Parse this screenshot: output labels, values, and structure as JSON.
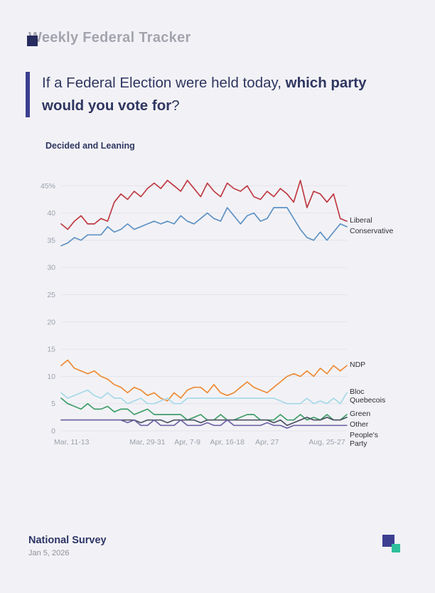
{
  "colors": {
    "background": "#f2f2f6",
    "accent": "#3c3f90",
    "heading_gray": "#a4a4af",
    "dark_text": "#2f3660",
    "tick_gray": "#9ba0ab",
    "grid": "#e3e3ea",
    "brand_teal": "#2fbf9b",
    "brand_navy": "#272b5e"
  },
  "header": {
    "title": "Weekly Federal Tracker",
    "question_normal": "If a Federal Election were held today, ",
    "question_bold": "which party would you vote for",
    "question_suffix": "?"
  },
  "chart_heading": "Decided and Leaning",
  "footer": {
    "title": "National Survey",
    "date": "Jan 5, 2026"
  },
  "chart_data": {
    "type": "line",
    "title": "Decided and Leaning",
    "xlabel": "",
    "ylabel": "",
    "ylim": [
      0,
      47
    ],
    "grid": true,
    "legend_position": "right-edge-labels",
    "n_points": 44,
    "y_ticks": [
      {
        "value": 45,
        "label": "45%"
      },
      {
        "value": 40,
        "label": "40"
      },
      {
        "value": 35,
        "label": "35"
      },
      {
        "value": 30,
        "label": "30"
      },
      {
        "value": 25,
        "label": "25"
      },
      {
        "value": 20,
        "label": "20"
      },
      {
        "value": 15,
        "label": "15"
      },
      {
        "value": 10,
        "label": "10"
      },
      {
        "value": 5,
        "label": "5"
      },
      {
        "value": 0,
        "label": "0"
      }
    ],
    "x_ticks": [
      {
        "index": 0,
        "label": "Mar, 11-13"
      },
      {
        "index": 13,
        "label": "Mar, 29-31"
      },
      {
        "index": 19,
        "label": "Apr, 7-9"
      },
      {
        "index": 25,
        "label": "Apr, 16-18"
      },
      {
        "index": 31,
        "label": "Apr, 27"
      },
      {
        "index": 40,
        "label": "Aug, 25-27"
      }
    ],
    "series": [
      {
        "name": "Liberal",
        "color": "#bf3a42",
        "values": [
          38,
          37,
          38.5,
          39.5,
          38,
          38,
          39,
          38.5,
          42,
          43.5,
          42.5,
          44,
          43,
          44.5,
          45.5,
          44.5,
          46,
          45,
          44,
          46,
          44.5,
          43,
          45.5,
          44,
          43,
          45.5,
          44.5,
          44,
          45,
          43,
          42.5,
          44,
          43,
          44.5,
          43.5,
          42,
          46,
          41,
          44,
          43.5,
          42,
          43.5,
          39,
          38.5
        ]
      },
      {
        "name": "Conservative",
        "color": "#5e92c4",
        "values": [
          34,
          34.5,
          35.5,
          35,
          36,
          36,
          36,
          37.5,
          36.5,
          37,
          38,
          37,
          37.5,
          38,
          38.5,
          38,
          38.5,
          38,
          39.5,
          38.5,
          38,
          39,
          40,
          39,
          38.5,
          41,
          39.5,
          38,
          39.5,
          40,
          38.5,
          39,
          41,
          41,
          41,
          39,
          37,
          35.5,
          35,
          36.5,
          35,
          36.5,
          38,
          37.5
        ]
      },
      {
        "name": "NDP",
        "color": "#ee8b34",
        "values": [
          12,
          13,
          11.5,
          11,
          10.5,
          11,
          10,
          9.5,
          8.5,
          8,
          7,
          8,
          7.5,
          6.5,
          7,
          6,
          5.5,
          7,
          6,
          7.5,
          8,
          8,
          7,
          8.5,
          7,
          6.5,
          7,
          8,
          9,
          8,
          7.5,
          7,
          8,
          9,
          10,
          10.5,
          10,
          11,
          10,
          11.5,
          10.5,
          12,
          11,
          12
        ]
      },
      {
        "name": "Bloc Quebecois",
        "color": "#a6d9e8",
        "values": [
          7,
          6,
          6.5,
          7,
          7.5,
          6.5,
          6,
          7,
          6,
          6,
          5,
          5.5,
          6,
          5,
          5,
          5.5,
          6,
          5,
          5,
          6,
          6,
          6,
          6,
          6,
          6,
          6,
          6,
          6,
          6,
          6,
          6,
          6,
          6,
          5.5,
          5,
          5,
          5,
          6,
          5,
          5.5,
          5,
          6,
          5,
          7
        ]
      },
      {
        "name": "Green",
        "color": "#3f9e68",
        "values": [
          6,
          5,
          4.5,
          4,
          5,
          4,
          4,
          4.5,
          3.5,
          4,
          4,
          3,
          3.5,
          4,
          3,
          3,
          3,
          3,
          3,
          2,
          2.5,
          3,
          2,
          2,
          3,
          2,
          2,
          2.5,
          3,
          3,
          2,
          2,
          2,
          3,
          2,
          2,
          3,
          2,
          2.5,
          2,
          3,
          2,
          2,
          3
        ]
      },
      {
        "name": "Other",
        "color": "#4d5263",
        "values": [
          2,
          2,
          2,
          2,
          2,
          2,
          2,
          2,
          2,
          2,
          2,
          2,
          1.5,
          2,
          2,
          2,
          1.5,
          2,
          2,
          2,
          2,
          1.5,
          2,
          2,
          2,
          2,
          2,
          2,
          2,
          2,
          2,
          2,
          1.5,
          2,
          1,
          1.5,
          2,
          2.5,
          2,
          2,
          2.5,
          2,
          2,
          2.5
        ]
      },
      {
        "name": "People's Party",
        "color": "#6f65a8",
        "values": [
          2,
          2,
          2,
          2,
          2,
          2,
          2,
          2,
          2,
          2,
          1.5,
          2,
          1,
          1,
          2,
          1,
          1,
          1,
          2,
          1,
          1,
          1,
          1.5,
          1,
          1,
          2,
          1,
          1,
          1,
          1,
          1,
          1.5,
          1,
          1,
          0.5,
          1,
          1,
          1,
          1,
          1,
          1,
          1,
          1,
          1
        ]
      }
    ]
  }
}
